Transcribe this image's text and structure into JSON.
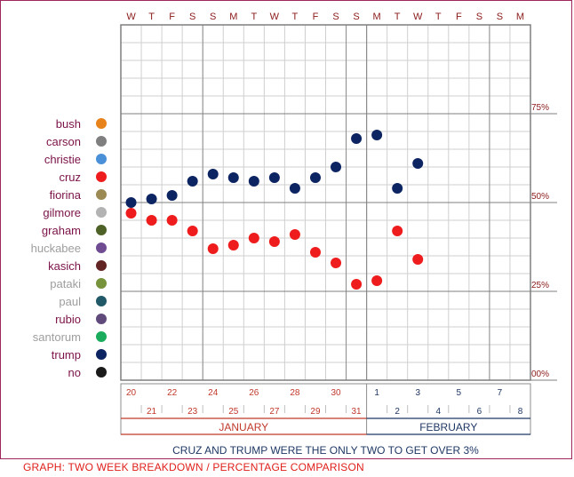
{
  "chart_data": {
    "type": "scatter",
    "weekday_labels": [
      "W",
      "T",
      "F",
      "S",
      "S",
      "M",
      "T",
      "W",
      "T",
      "F",
      "S",
      "S",
      "M",
      "T",
      "W",
      "T",
      "F",
      "S",
      "S",
      "M"
    ],
    "y_ticks": [
      {
        "value": 75,
        "label": "75%"
      },
      {
        "value": 50,
        "label": "50%"
      },
      {
        "value": 25,
        "label": "25%"
      },
      {
        "value": 0,
        "label": "00%"
      }
    ],
    "ylim": [
      0,
      100
    ],
    "legend": [
      {
        "name": "bush",
        "color": "#e8821a"
      },
      {
        "name": "carson",
        "color": "#7f7f7f"
      },
      {
        "name": "christie",
        "color": "#4a90d9"
      },
      {
        "name": "cruz",
        "color": "#ee1c1c"
      },
      {
        "name": "fiorina",
        "color": "#9c8a55"
      },
      {
        "name": "gilmore",
        "color": "#b3b3b3"
      },
      {
        "name": "graham",
        "color": "#4e6228"
      },
      {
        "name": "huckabee",
        "color": "#6f4c92"
      },
      {
        "name": "kasich",
        "color": "#632523"
      },
      {
        "name": "pataki",
        "color": "#77933c"
      },
      {
        "name": "paul",
        "color": "#215968"
      },
      {
        "name": "rubio",
        "color": "#604a7b"
      },
      {
        "name": "santorum",
        "color": "#1aac5c"
      },
      {
        "name": "trump",
        "color": "#0c2461"
      },
      {
        "name": "no",
        "color": "#1a1a1a"
      }
    ],
    "series": [
      {
        "name": "cruz",
        "color": "#ee1c1c",
        "points": [
          {
            "x": 0,
            "y": 47
          },
          {
            "x": 1,
            "y": 45
          },
          {
            "x": 2,
            "y": 45
          },
          {
            "x": 3,
            "y": 42
          },
          {
            "x": 4,
            "y": 37
          },
          {
            "x": 5,
            "y": 38
          },
          {
            "x": 6,
            "y": 40
          },
          {
            "x": 7,
            "y": 39
          },
          {
            "x": 8,
            "y": 41
          },
          {
            "x": 9,
            "y": 36
          },
          {
            "x": 10,
            "y": 33
          },
          {
            "x": 11,
            "y": 27
          },
          {
            "x": 12,
            "y": 28
          },
          {
            "x": 13,
            "y": 42
          },
          {
            "x": 14,
            "y": 34
          }
        ]
      },
      {
        "name": "trump",
        "color": "#0c2461",
        "points": [
          {
            "x": 0,
            "y": 50
          },
          {
            "x": 1,
            "y": 51
          },
          {
            "x": 2,
            "y": 52
          },
          {
            "x": 3,
            "y": 56
          },
          {
            "x": 4,
            "y": 58
          },
          {
            "x": 5,
            "y": 57
          },
          {
            "x": 6,
            "y": 56
          },
          {
            "x": 7,
            "y": 57
          },
          {
            "x": 8,
            "y": 54
          },
          {
            "x": 9,
            "y": 57
          },
          {
            "x": 10,
            "y": 60
          },
          {
            "x": 11,
            "y": 68
          },
          {
            "x": 12,
            "y": 69
          },
          {
            "x": 13,
            "y": 54
          },
          {
            "x": 14,
            "y": 61
          }
        ]
      }
    ],
    "day_numbers": [
      "20",
      "21",
      "22",
      "23",
      "24",
      "25",
      "26",
      "27",
      "28",
      "29",
      "30",
      "31",
      "1",
      "2",
      "3",
      "4",
      "5",
      "6",
      "7",
      "8"
    ],
    "months": [
      {
        "label": "JANUARY",
        "color": "#c0392b"
      },
      {
        "label": "FEBRUARY",
        "color": "#1f3864"
      }
    ],
    "subtitle": "CRUZ AND TRUMP WERE THE ONLY TWO TO GET OVER 3%",
    "caption": "GRAPH: TWO WEEK BREAKDOWN / PERCENTAGE COMPARISON"
  }
}
